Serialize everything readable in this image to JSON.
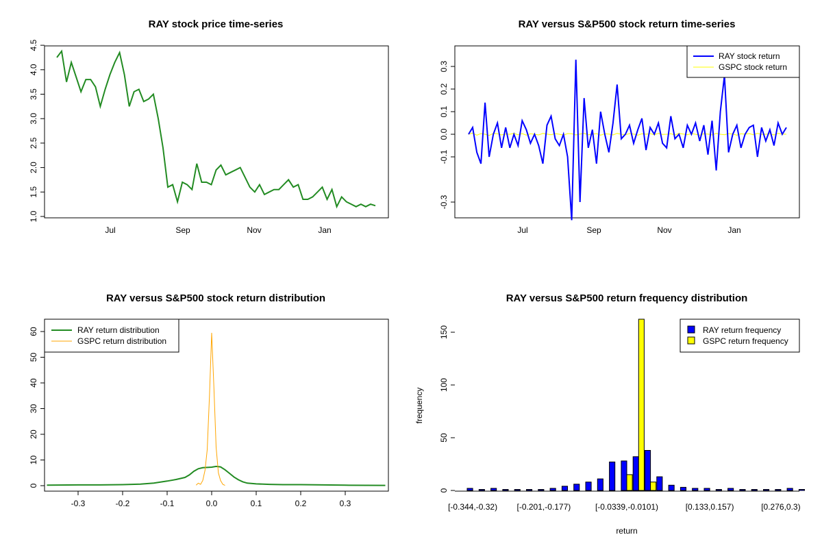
{
  "chart_data": [
    {
      "type": "line",
      "title": "RAY stock price time-series",
      "xlabel": "",
      "ylabel": "",
      "x_ticks": [
        "Jul",
        "Sep",
        "Nov",
        "Jan"
      ],
      "y_ticks": [
        "1.0",
        "1.5",
        "2.0",
        "2.5",
        "3.0",
        "3.5",
        "4.0",
        "4.5"
      ],
      "ylim": [
        1.0,
        4.5
      ],
      "color": "#228B22",
      "series": [
        {
          "x": [
            "May 17",
            "May 20",
            "May 24",
            "May 28",
            "Jun 1",
            "Jun 5",
            "Jun 8",
            "Jun 12",
            "Jun 15",
            "Jun 18",
            "Jun 22",
            "Jun 25",
            "Jun 28",
            "Jul 1",
            "Jul 4",
            "Jul 7",
            "Jul 10",
            "Jul 13",
            "Jul 17",
            "Jul 20",
            "Jul 24",
            "Jul 27",
            "Jul 31",
            "Aug 4",
            "Aug 8",
            "Aug 12",
            "Aug 15",
            "Aug 19",
            "Aug 22",
            "Aug 26",
            "Aug 29",
            "Sep 1",
            "Sep 4",
            "Sep 8",
            "Sep 12",
            "Sep 16",
            "Sep 20",
            "Sep 24",
            "Sep 28",
            "Oct 1",
            "Oct 5",
            "Oct 10",
            "Oct 15",
            "Oct 20",
            "Oct 25",
            "Oct 30",
            "Nov 5",
            "Nov 10",
            "Nov 15",
            "Nov 20",
            "Nov 25",
            "Dec 1",
            "Dec 6",
            "Dec 11",
            "Dec 16",
            "Dec 21",
            "Dec 27",
            "Jan 2",
            "Jan 8",
            "Jan 14",
            "Jan 20",
            "Jan 26",
            "Feb 1",
            "Feb 7",
            "Feb 13",
            "Feb 19",
            "Feb 25"
          ],
          "values": [
            4.25,
            4.38,
            3.75,
            4.15,
            3.85,
            3.55,
            3.8,
            3.8,
            3.65,
            3.25,
            3.6,
            3.9,
            4.15,
            4.35,
            3.9,
            3.25,
            3.55,
            3.6,
            3.35,
            3.4,
            3.5,
            3.0,
            2.4,
            1.6,
            1.65,
            1.3,
            1.7,
            1.65,
            1.55,
            2.08,
            1.7,
            1.7,
            1.65,
            1.95,
            2.05,
            1.85,
            1.9,
            1.95,
            2.0,
            1.8,
            1.6,
            1.5,
            1.65,
            1.45,
            1.5,
            1.55,
            1.55,
            1.65,
            1.75,
            1.6,
            1.65,
            1.35,
            1.35,
            1.4,
            1.5,
            1.6,
            1.35,
            1.55,
            1.2,
            1.4,
            1.3,
            1.25,
            1.2,
            1.25,
            1.2,
            1.25,
            1.22
          ]
        }
      ]
    },
    {
      "type": "line",
      "title": "RAY versus S&P500 stock return time-series",
      "xlabel": "",
      "ylabel": "",
      "x_ticks": [
        "Jul",
        "Sep",
        "Nov",
        "Jan"
      ],
      "y_ticks": [
        "-0.3",
        "-0.1",
        "0.0",
        "0.1",
        "0.2",
        "0.3"
      ],
      "ylim": [
        -0.35,
        0.35
      ],
      "legend": "top-right",
      "series": [
        {
          "name": "RAY stock return",
          "color": "#0000FF",
          "values": [
            0.0,
            0.03,
            -0.08,
            -0.13,
            0.14,
            -0.1,
            0.0,
            0.05,
            -0.06,
            0.03,
            -0.06,
            0.0,
            -0.05,
            0.06,
            0.02,
            -0.04,
            0.0,
            -0.05,
            -0.13,
            0.04,
            0.08,
            -0.02,
            -0.05,
            0.0,
            -0.1,
            -0.38,
            0.33,
            -0.3,
            0.16,
            -0.06,
            0.02,
            -0.13,
            0.1,
            0.0,
            -0.08,
            0.05,
            0.22,
            -0.02,
            0.0,
            0.04,
            -0.04,
            0.02,
            0.07,
            -0.07,
            0.03,
            0.0,
            0.05,
            -0.04,
            -0.06,
            0.08,
            -0.02,
            0.0,
            -0.06,
            0.04,
            0.0,
            0.05,
            -0.03,
            0.04,
            -0.09,
            0.06,
            -0.16,
            0.1,
            0.26,
            -0.08,
            0.0,
            0.04,
            -0.06,
            0.0,
            0.03,
            0.04,
            -0.1,
            0.03,
            -0.03,
            0.02,
            -0.05,
            0.05,
            0.0,
            0.03
          ]
        },
        {
          "name": "GSPC stock return",
          "color": "#FFFF00",
          "values": [
            0.0,
            0.005,
            -0.004,
            0.003,
            0.0,
            -0.005,
            0.004,
            0.002,
            -0.003,
            0.001,
            0.0,
            0.004,
            -0.002,
            0.003,
            -0.004,
            0.002,
            0.0,
            -0.003,
            0.004,
            0.001,
            -0.002,
            0.003,
            0.0,
            -0.004,
            0.003,
            0.002,
            -0.003,
            0.001,
            0.004,
            -0.002,
            0.0,
            0.003,
            -0.004,
            0.002,
            0.001,
            -0.003,
            0.004,
            0.0,
            -0.002,
            0.003,
            0.001,
            -0.004,
            0.002,
            0.0,
            0.003,
            -0.002,
            0.004,
            -0.001,
            0.0,
            0.002,
            -0.003,
            0.004,
            0.001,
            -0.002,
            0.003,
            0.0,
            -0.004,
            0.002,
            0.001,
            -0.003,
            0.004,
            0.0,
            -0.002,
            0.003,
            0.001,
            -0.004,
            0.002,
            0.0,
            0.003,
            -0.002,
            0.004,
            -0.001,
            0.0,
            0.002,
            -0.003,
            0.004,
            0.001,
            0.0
          ]
        }
      ]
    },
    {
      "type": "line",
      "title": "RAY versus S&P500 stock return distribution",
      "xlabel": "",
      "ylabel": "",
      "x_ticks": [
        "-0.3",
        "-0.2",
        "-0.1",
        "0.0",
        "0.1",
        "0.2",
        "0.3"
      ],
      "y_ticks": [
        "0",
        "10",
        "20",
        "30",
        "40",
        "50",
        "60"
      ],
      "xlim": [
        -0.37,
        0.39
      ],
      "ylim": [
        -1.5,
        64
      ],
      "legend": "top-left",
      "series": [
        {
          "name": "RAY return distribution",
          "color": "#228B22",
          "x": [
            -0.37,
            -0.3,
            -0.25,
            -0.2,
            -0.16,
            -0.13,
            -0.1,
            -0.08,
            -0.06,
            -0.05,
            -0.04,
            -0.03,
            -0.02,
            -0.01,
            0.0,
            0.01,
            0.02,
            0.03,
            0.04,
            0.05,
            0.06,
            0.07,
            0.08,
            0.1,
            0.13,
            0.16,
            0.2,
            0.25,
            0.3,
            0.39
          ],
          "y": [
            0.2,
            0.3,
            0.3,
            0.4,
            0.6,
            1.0,
            1.8,
            2.4,
            3.2,
            4.2,
            5.6,
            6.6,
            7.0,
            7.1,
            7.2,
            7.5,
            7.3,
            6.2,
            4.8,
            3.4,
            2.3,
            1.5,
            1.0,
            0.7,
            0.5,
            0.4,
            0.4,
            0.3,
            0.2,
            0.1
          ]
        },
        {
          "name": "GSPC return distribution",
          "color": "#FFA500",
          "x": [
            -0.035,
            -0.03,
            -0.025,
            -0.02,
            -0.015,
            -0.01,
            -0.005,
            0.0,
            0.005,
            0.01,
            0.015,
            0.02,
            0.025,
            0.03
          ],
          "y": [
            0.2,
            1.0,
            0.5,
            2.0,
            6.0,
            14.0,
            35.0,
            59.5,
            38.0,
            15.0,
            5.0,
            2.0,
            0.5,
            0.1
          ]
        }
      ]
    },
    {
      "type": "bar",
      "title": "RAY versus S&P500 return frequency distribution",
      "xlabel": "return",
      "ylabel": "frequency",
      "x_ticks": [
        "[-0.344,-0.32)",
        "[-0.201,-0.177)",
        "[-0.0339,-0.0101)",
        "[0.133,0.157)",
        "[0.276,0.3)"
      ],
      "tick_bins": [
        0,
        6,
        13,
        20,
        26
      ],
      "y_ticks": [
        "0",
        "50",
        "100",
        "150"
      ],
      "ylim": [
        0,
        165
      ],
      "legend": "top-right",
      "series": [
        {
          "name": "RAY return frequency",
          "color": "#0000FF",
          "values": [
            2,
            1,
            2,
            1,
            1,
            1,
            1,
            2,
            4,
            6,
            8,
            11,
            27,
            28,
            32,
            38,
            13,
            5,
            3,
            2,
            2,
            1,
            2,
            1,
            1,
            1,
            1,
            2,
            1
          ]
        },
        {
          "name": "GSPC return frequency",
          "color": "#FFFF00",
          "values": [
            0,
            0,
            0,
            0,
            0,
            0,
            0,
            0,
            0,
            0,
            0,
            0,
            0,
            15,
            168,
            8,
            0,
            0,
            0,
            0,
            0,
            0,
            0,
            0,
            0,
            0,
            0,
            0,
            0
          ]
        }
      ]
    }
  ]
}
